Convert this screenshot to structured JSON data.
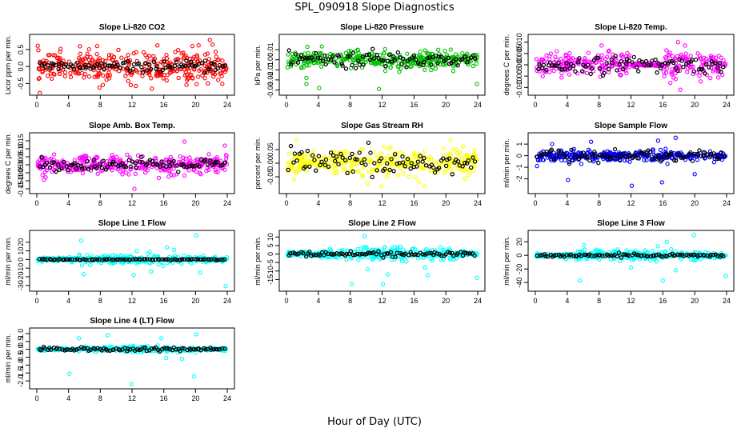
{
  "figure": {
    "title": "SPL_090918  Slope Diagnostics",
    "xlabel": "Hour of Day (UTC)"
  },
  "chart_data": [
    {
      "type": "scatter",
      "title": "Slope Li-820 CO2",
      "ylabel": "Licor ppm per min.",
      "xlim": [
        0,
        24
      ],
      "xticks": [
        0,
        4,
        8,
        12,
        16,
        20,
        24
      ],
      "ylim": [
        -0.75,
        0.85
      ],
      "yticks": [
        -0.5,
        0.0,
        0.5
      ],
      "yticklabels": [
        "-0.5",
        "0.0",
        "0.5"
      ],
      "color": "#ff0000",
      "spread": 0.32,
      "black_spread": 0.12,
      "outliers": [
        [
          7.6,
          0.6
        ],
        [
          15.2,
          0.62
        ],
        [
          21.8,
          0.78
        ],
        [
          19.6,
          0.6
        ],
        [
          7.9,
          -0.62
        ]
      ],
      "series": [
        {
          "name": "",
          "color": "#ff0000"
        },
        {
          "name": "",
          "color": "#000000"
        }
      ]
    },
    {
      "type": "scatter",
      "title": "Slope Li-820 Pressure",
      "ylabel": "kPa per min.",
      "xlim": [
        0,
        24
      ],
      "xticks": [
        0,
        4,
        8,
        12,
        16,
        20,
        24
      ],
      "ylim": [
        -0.032,
        0.022
      ],
      "yticks": [
        -0.03,
        -0.02,
        -0.01,
        0.0,
        0.01
      ],
      "yticklabels": [
        "-0.03",
        "-0.02",
        "-0.01",
        "0.00",
        "0.01"
      ],
      "color": "#00c000",
      "spread": 0.006,
      "black_spread": 0.007,
      "outliers": [
        [
          2.5,
          -0.024
        ],
        [
          2.5,
          -0.018
        ],
        [
          11.6,
          -0.029
        ],
        [
          4.1,
          -0.028
        ],
        [
          23.9,
          -0.024
        ],
        [
          12.4,
          -0.011
        ]
      ],
      "series": [
        {
          "name": "",
          "color": "#00c000"
        },
        {
          "name": "",
          "color": "#000000"
        }
      ]
    },
    {
      "type": "scatter",
      "title": "Slope Li-820 Temp.",
      "ylabel": "degrees C per min.",
      "xlim": [
        0,
        24
      ],
      "xticks": [
        0,
        4,
        8,
        12,
        16,
        20,
        24
      ],
      "ylim": [
        -0.012,
        0.012
      ],
      "yticks": [
        -0.01,
        -0.005,
        0.0,
        0.005,
        0.01
      ],
      "yticklabels": [
        "-0.010",
        "-0.005",
        "0.000",
        "0.005",
        "0.010"
      ],
      "color": "#ff00ff",
      "spread": 0.004,
      "black_spread": 0.003,
      "outliers": [
        [
          18.2,
          -0.011
        ],
        [
          18.8,
          0.0085
        ],
        [
          8.3,
          0.0085
        ],
        [
          17.9,
          0.01
        ]
      ],
      "series": [
        {
          "name": "",
          "color": "#ff00ff"
        },
        {
          "name": "",
          "color": "#000000"
        }
      ]
    },
    {
      "type": "scatter",
      "title": "Slope Amb. Box Temp.",
      "ylabel": "degrees C per min.",
      "xlim": [
        0,
        24
      ],
      "xticks": [
        0,
        4,
        8,
        12,
        16,
        20,
        24
      ],
      "ylim": [
        -0.16,
        0.18
      ],
      "yticks": [
        -0.15,
        -0.1,
        -0.05,
        0.0,
        0.05,
        0.1,
        0.15
      ],
      "yticklabels": [
        "-0.15",
        "-0.10",
        "-0.05",
        "0.00",
        "0.05",
        "0.10",
        "0.15"
      ],
      "color": "#ff00ff",
      "spread": 0.04,
      "black_spread": 0.03,
      "outliers": [
        [
          12.3,
          -0.15
        ],
        [
          18.6,
          0.145
        ],
        [
          23.7,
          0.12
        ]
      ],
      "series": [
        {
          "name": "",
          "color": "#ff00ff"
        },
        {
          "name": "",
          "color": "#000000"
        }
      ]
    },
    {
      "type": "scatter",
      "title": "Slope Gas Stream RH",
      "ylabel": "percent per min.",
      "xlim": [
        0,
        24
      ],
      "xticks": [
        0,
        4,
        8,
        12,
        16,
        20,
        24
      ],
      "ylim": [
        -0.1,
        0.1
      ],
      "yticks": [
        -0.05,
        0.0,
        0.05
      ],
      "yticklabels": [
        "-0.05",
        "0.00",
        "0.05"
      ],
      "color": "#ffff00",
      "spread": 0.035,
      "black_spread": 0.04,
      "outliers": [
        [
          1.3,
          0.085
        ],
        [
          17.3,
          -0.085
        ],
        [
          20.6,
          0.085
        ],
        [
          11.9,
          -0.085
        ],
        [
          16.6,
          -0.07
        ]
      ],
      "series": [
        {
          "name": "",
          "color": "#ffff00"
        },
        {
          "name": "",
          "color": "#000000"
        }
      ]
    },
    {
      "type": "scatter",
      "title": "Slope Sample Flow",
      "ylabel": "ml/min per min.",
      "xlim": [
        0,
        24
      ],
      "xticks": [
        0,
        4,
        8,
        12,
        16,
        20,
        24
      ],
      "ylim": [
        -3.0,
        1.7
      ],
      "yticks": [
        -2,
        -1,
        0,
        1
      ],
      "yticklabels": [
        "-2",
        "-1",
        "0",
        "1"
      ],
      "color": "#0000ff",
      "spread": 0.3,
      "black_spread": 0.5,
      "outliers": [
        [
          4.1,
          -2.1
        ],
        [
          12.1,
          -2.6
        ],
        [
          15.9,
          -2.3
        ],
        [
          20.0,
          -1.6
        ],
        [
          7.0,
          1.2
        ],
        [
          0.2,
          -0.9
        ],
        [
          15.4,
          1.3
        ],
        [
          2.1,
          1.0
        ],
        [
          17.6,
          1.55
        ]
      ],
      "series": [
        {
          "name": "",
          "color": "#0000ff"
        },
        {
          "name": "",
          "color": "#000000"
        }
      ]
    },
    {
      "type": "scatter",
      "title": "Slope Line 1 Flow",
      "ylabel": "ml/min per min.",
      "xlim": [
        0,
        24
      ],
      "xticks": [
        0,
        4,
        8,
        12,
        16,
        20,
        24
      ],
      "ylim": [
        -33,
        30
      ],
      "yticks": [
        -30,
        -20,
        -10,
        0,
        10,
        20
      ],
      "yticklabels": [
        "-30",
        "-20",
        "-10",
        "0",
        "10",
        "20"
      ],
      "color": "#00ffff",
      "spread": 3.5,
      "black_spread": 0.6,
      "outliers": [
        [
          5.6,
          22
        ],
        [
          20.1,
          28
        ],
        [
          23.8,
          -31
        ],
        [
          5.9,
          -17
        ],
        [
          12.2,
          -18
        ],
        [
          14.4,
          -14
        ],
        [
          20.6,
          -15
        ],
        [
          12.6,
          10
        ],
        [
          16.4,
          14
        ],
        [
          17.3,
          11
        ]
      ],
      "series": [
        {
          "name": "",
          "color": "#00ffff"
        },
        {
          "name": "",
          "color": "#000000"
        }
      ]
    },
    {
      "type": "scatter",
      "title": "Slope Line 2 Flow",
      "ylabel": "ml/min per min.",
      "xlim": [
        0,
        24
      ],
      "xticks": [
        0,
        4,
        8,
        12,
        16,
        20,
        24
      ],
      "ylim": [
        -20,
        12
      ],
      "yticks": [
        -15,
        -10,
        -5,
        0,
        5,
        10
      ],
      "yticklabels": [
        "-15",
        "-10",
        "-5",
        "0",
        "5",
        "10"
      ],
      "color": "#00ffff",
      "spread": 2.5,
      "black_spread": 1.2,
      "outliers": [
        [
          9.8,
          10.5
        ],
        [
          8.2,
          -17.5
        ],
        [
          12.1,
          -17.8
        ],
        [
          23.9,
          -14
        ],
        [
          17.7,
          -12.5
        ],
        [
          17.4,
          -8
        ],
        [
          10.2,
          -9
        ],
        [
          12.7,
          -12
        ]
      ],
      "series": [
        {
          "name": "",
          "color": "#00ffff"
        },
        {
          "name": "",
          "color": "#000000"
        }
      ]
    },
    {
      "type": "scatter",
      "title": "Slope Line 3 Flow",
      "ylabel": "ml/min per min.",
      "xlim": [
        0,
        24
      ],
      "xticks": [
        0,
        4,
        8,
        12,
        16,
        20,
        24
      ],
      "ylim": [
        -48,
        32
      ],
      "yticks": [
        -40,
        -20,
        0,
        20
      ],
      "yticklabels": [
        "-40",
        "-20",
        "0",
        "20"
      ],
      "color": "#00ffff",
      "spread": 5,
      "black_spread": 2,
      "outliers": [
        [
          5.6,
          -37
        ],
        [
          19.9,
          30
        ],
        [
          23.9,
          -30
        ],
        [
          16.0,
          -37
        ],
        [
          17.6,
          -22
        ],
        [
          12.0,
          -18
        ],
        [
          16.5,
          20
        ],
        [
          6.1,
          15
        ]
      ],
      "series": [
        {
          "name": "",
          "color": "#00ffff"
        },
        {
          "name": "",
          "color": "#000000"
        }
      ]
    },
    {
      "type": "scatter",
      "title": "Slope Line 4 (LT) Flow",
      "ylabel": "ml/min per min.",
      "xlim": [
        0,
        24
      ],
      "xticks": [
        0,
        4,
        8,
        12,
        16,
        20,
        24
      ],
      "ylim": [
        -2.3,
        1.15
      ],
      "yticks": [
        -2.0,
        -1.5,
        -1.0,
        -0.5,
        0.0,
        0.5,
        1.0
      ],
      "yticklabels": [
        "-2.0",
        "-1.5",
        "-1.0",
        "-0.5",
        "0.0",
        "0.5",
        "1.0"
      ],
      "color": "#00ffff",
      "spread": 0.12,
      "black_spread": 0.1,
      "outliers": [
        [
          4.1,
          -1.55
        ],
        [
          11.9,
          -2.2
        ],
        [
          19.8,
          -1.7
        ],
        [
          5.3,
          0.7
        ],
        [
          8.9,
          0.9
        ],
        [
          15.7,
          0.7
        ],
        [
          20.1,
          0.95
        ],
        [
          18.3,
          -0.6
        ],
        [
          16.3,
          -0.55
        ]
      ],
      "series": [
        {
          "name": "",
          "color": "#00ffff"
        },
        {
          "name": "",
          "color": "#000000"
        }
      ]
    }
  ]
}
